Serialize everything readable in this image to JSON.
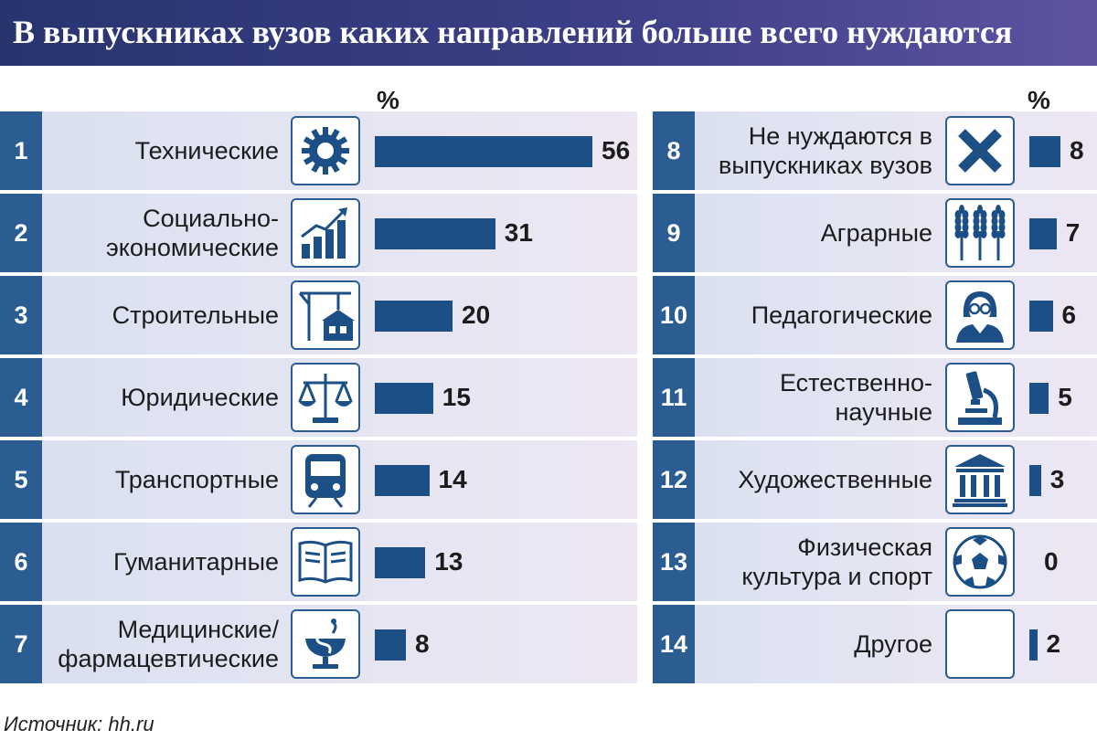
{
  "title": "В выпускниках вузов каких направлений больше всего нуждаются",
  "percent_label": "%",
  "source": "Источник: hh.ru",
  "colors": {
    "header": "#3c3f86",
    "rank_box": "#2c5d92",
    "bar": "#1c4f86",
    "row_bg": "#e4e5f2"
  },
  "chart_data": {
    "type": "bar",
    "title": "В выпускниках вузов каких направлений больше всего нуждаются",
    "unit": "%",
    "source": "Источник: hh.ru",
    "left_column": [
      {
        "rank": "1",
        "label": "Технические",
        "value": 56,
        "icon": "gear-icon"
      },
      {
        "rank": "2",
        "label": "Социально-\nэкономические",
        "value": 31,
        "icon": "growth-chart-icon"
      },
      {
        "rank": "3",
        "label": "Строительные",
        "value": 20,
        "icon": "crane-icon"
      },
      {
        "rank": "4",
        "label": "Юридические",
        "value": 15,
        "icon": "scales-icon"
      },
      {
        "rank": "5",
        "label": "Транспортные",
        "value": 14,
        "icon": "train-icon"
      },
      {
        "rank": "6",
        "label": "Гуманитарные",
        "value": 13,
        "icon": "book-icon"
      },
      {
        "rank": "7",
        "label": "Медицинские/\nфармацевтические",
        "value": 8,
        "icon": "snake-bowl-icon"
      }
    ],
    "right_column": [
      {
        "rank": "8",
        "label": "Не нуждаются в\nвыпускниках вузов",
        "value": 8,
        "icon": "cross-icon"
      },
      {
        "rank": "9",
        "label": "Аграрные",
        "value": 7,
        "icon": "wheat-icon"
      },
      {
        "rank": "10",
        "label": "Педагогические",
        "value": 6,
        "icon": "teacher-icon"
      },
      {
        "rank": "11",
        "label": "Естественно-\nнаучные",
        "value": 5,
        "icon": "microscope-icon"
      },
      {
        "rank": "12",
        "label": "Художественные",
        "value": 3,
        "icon": "museum-icon"
      },
      {
        "rank": "13",
        "label": "Физическая\nкультура и спорт",
        "value": 0,
        "icon": "soccer-ball-icon"
      },
      {
        "rank": "14",
        "label": "Другое",
        "value": 2,
        "icon": "empty-icon"
      }
    ]
  }
}
